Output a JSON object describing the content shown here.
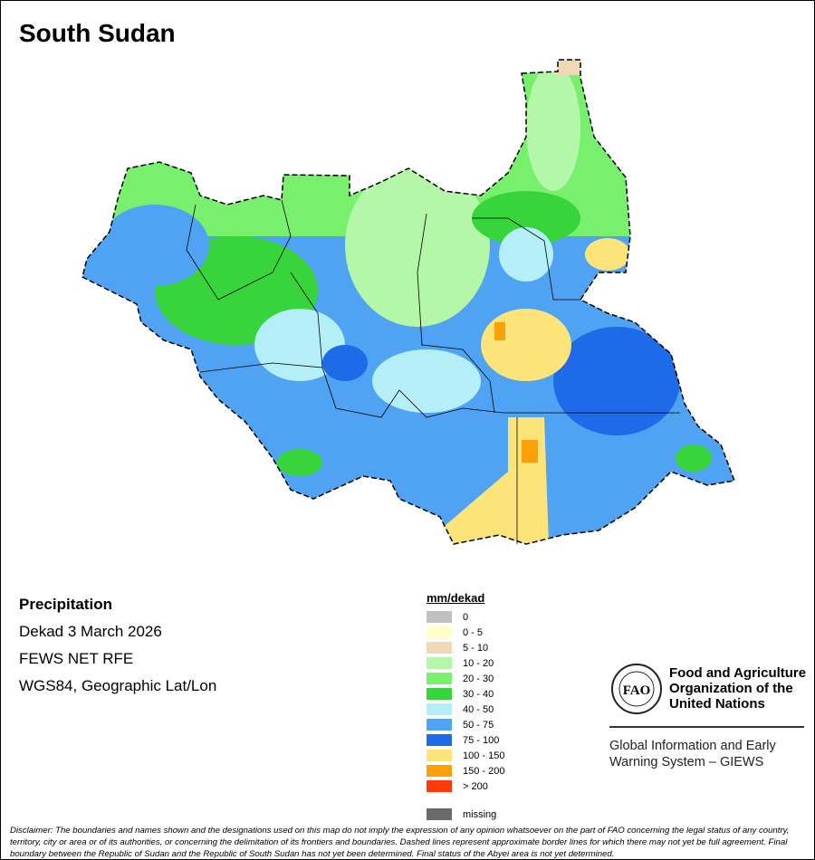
{
  "title": "South Sudan",
  "info": {
    "variable": "Precipitation",
    "period": "Dekad 3 March 2026",
    "source": "FEWS NET RFE",
    "projection": "WGS84, Geographic Lat/Lon"
  },
  "legend": {
    "title": "mm/dekad",
    "items": [
      {
        "label": "0",
        "color": "#c0c0c0"
      },
      {
        "label": "0 - 5",
        "color": "#ffffcc"
      },
      {
        "label": "5 - 10",
        "color": "#efd9b5"
      },
      {
        "label": "10 - 20",
        "color": "#b4f7a8"
      },
      {
        "label": "20 - 30",
        "color": "#78f06e"
      },
      {
        "label": "30 - 40",
        "color": "#37d43c"
      },
      {
        "label": "40 - 50",
        "color": "#b4eef7"
      },
      {
        "label": "50 - 75",
        "color": "#4fa3f2"
      },
      {
        "label": "75 - 100",
        "color": "#1e6ae8"
      },
      {
        "label": "100 - 150",
        "color": "#fde47a"
      },
      {
        "label": "150 - 200",
        "color": "#fca00a"
      },
      {
        "label": "> 200",
        "color": "#ff3a0a"
      }
    ],
    "missing": {
      "label": "missing",
      "color": "#6a6a6a"
    }
  },
  "logo": {
    "acronym": "FAO",
    "org": "Food and Agriculture Organization of the United Nations",
    "system": "Global Information and Early Warning System – GIEWS"
  },
  "disclaimer": "Disclaimer: The boundaries and names shown and the designations used on this map do not imply the expression of any opinion whatsoever on the part of FAO concerning the legal status of any country, territory, city or area or of its authorities, or concerning the delimitation of its frontiers and boundaries. Dashed lines represent approximate border lines for which there may not yet be full agreement.  Final boundary between the Republic of Sudan and the Republic of South Sudan has not yet been determined. Final status of the Abyei area is not yet determined."
}
